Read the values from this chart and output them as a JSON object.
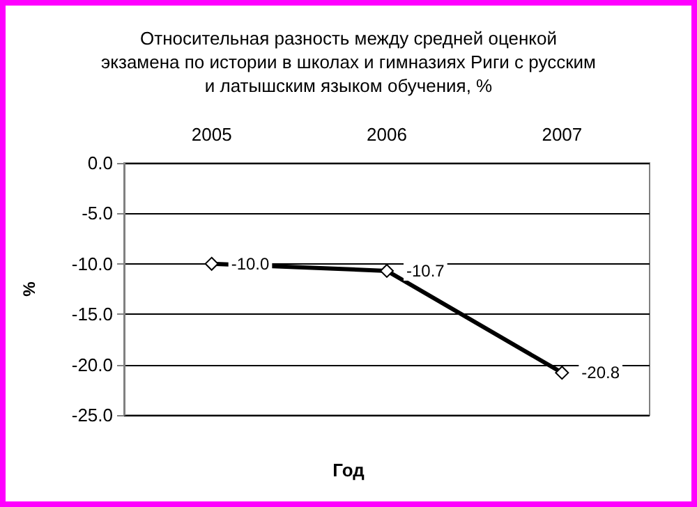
{
  "chart_data": {
    "type": "line",
    "title": "Относительная разность между средней оценкой\nэкзамена по истории в школах и гимназиях Риги с русским\nи латышским языком обучения, %",
    "xlabel": "Год",
    "ylabel": "%",
    "categories": [
      "2005",
      "2006",
      "2007"
    ],
    "series": [
      {
        "color": "#000000",
        "values": [
          -10.0,
          -10.7,
          -20.8
        ],
        "value_labels": [
          "-10.0",
          "-10.7",
          "-20.8"
        ]
      }
    ],
    "ylim": [
      -25,
      0
    ],
    "yticks": [
      {
        "value": 0,
        "label": "0.0"
      },
      {
        "value": -5,
        "label": "-5.0"
      },
      {
        "value": -10,
        "label": "-10.0"
      },
      {
        "value": -15,
        "label": "-15.0"
      },
      {
        "value": -20,
        "label": "-20.0"
      },
      {
        "value": -25,
        "label": "-25.0"
      }
    ],
    "grid": "y",
    "marker": "diamond",
    "line_style": "solid"
  }
}
